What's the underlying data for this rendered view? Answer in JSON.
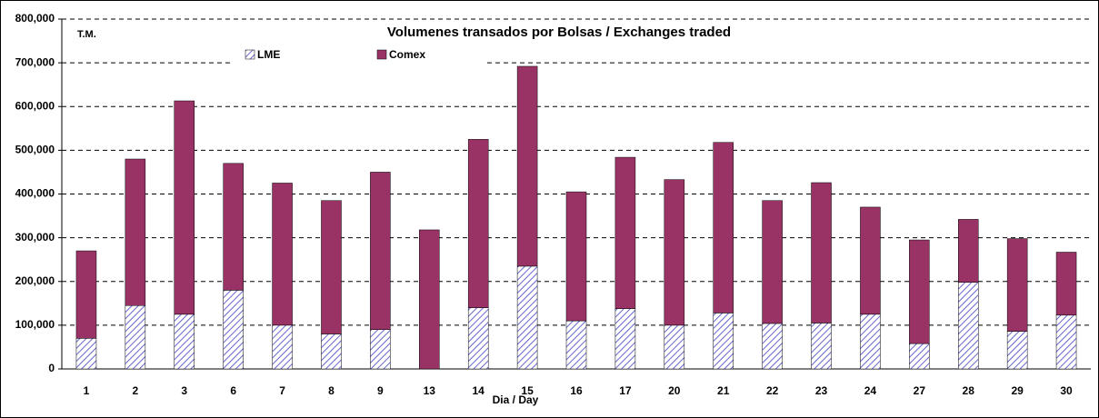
{
  "chart_data": {
    "type": "stacked_bar",
    "title": "Volumenes transados por Bolsas / Exchanges traded",
    "y_unit": "T.M.",
    "x_label": "Dia / Day",
    "categories": [
      "1",
      "2",
      "3",
      "6",
      "7",
      "8",
      "9",
      "13",
      "14",
      "15",
      "16",
      "17",
      "20",
      "21",
      "22",
      "23",
      "24",
      "27",
      "28",
      "29",
      "30"
    ],
    "series": [
      {
        "name": "LME",
        "color": "#6666cc",
        "pattern": "hatch",
        "values": [
          70000,
          145000,
          125000,
          180000,
          100000,
          80000,
          90000,
          0,
          140000,
          235000,
          110000,
          138000,
          100000,
          128000,
          104000,
          105000,
          125000,
          58000,
          198000,
          86000,
          123000
        ]
      },
      {
        "name": "Comex",
        "color": "#993366",
        "pattern": "solid",
        "values": [
          200000,
          335000,
          488000,
          290000,
          325000,
          305000,
          360000,
          318000,
          385000,
          457000,
          295000,
          346000,
          333000,
          390000,
          281000,
          321000,
          245000,
          237000,
          144000,
          212000,
          144000
        ]
      }
    ],
    "ylim": [
      0,
      800000
    ],
    "yticks": [
      0,
      {
        "value": 100000,
        "label": "100,000"
      },
      {
        "value": 200000,
        "label": "200,000"
      },
      {
        "value": 300000,
        "label": "300,000"
      },
      {
        "value": 400000,
        "label": "400,000"
      },
      {
        "value": 500000,
        "label": "500,000"
      },
      {
        "value": 600000,
        "label": "600,000"
      },
      {
        "value": 700000,
        "label": "700,000"
      },
      {
        "value": 800000,
        "label": "800,000"
      }
    ],
    "grid": true
  }
}
